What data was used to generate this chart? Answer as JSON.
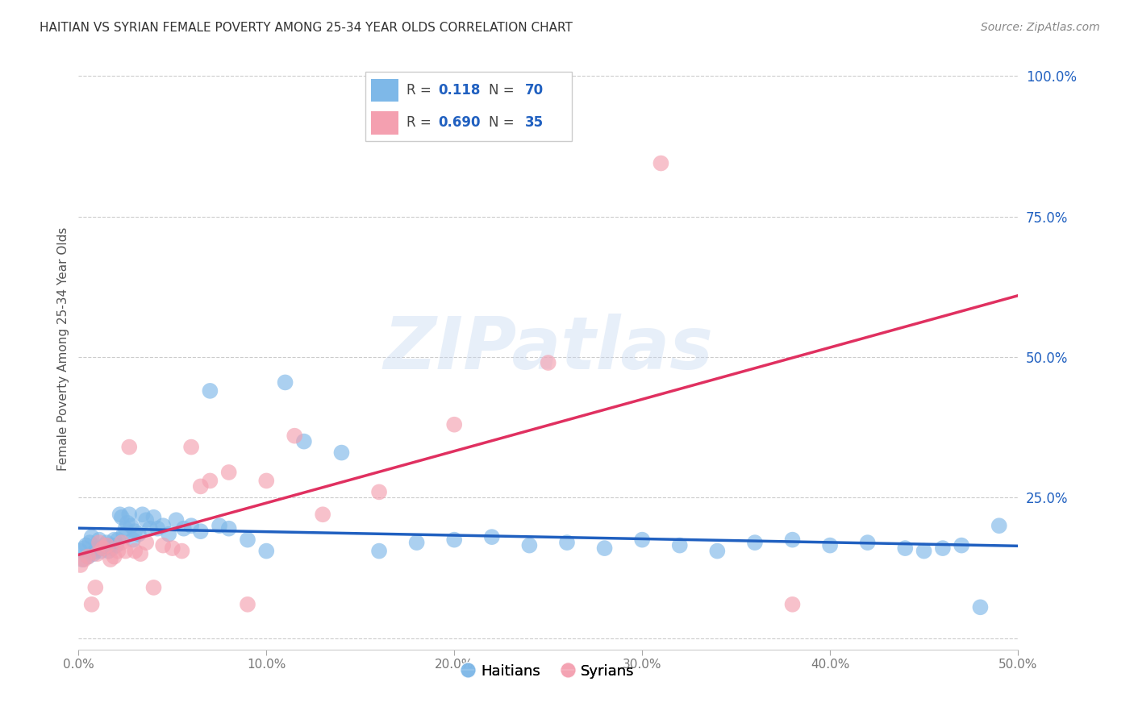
{
  "title": "HAITIAN VS SYRIAN FEMALE POVERTY AMONG 25-34 YEAR OLDS CORRELATION CHART",
  "source": "Source: ZipAtlas.com",
  "ylabel": "Female Poverty Among 25-34 Year Olds",
  "xlim": [
    0.0,
    0.5
  ],
  "ylim": [
    -0.02,
    1.05
  ],
  "xticks": [
    0.0,
    0.1,
    0.2,
    0.3,
    0.4,
    0.5
  ],
  "yticks": [
    0.0,
    0.25,
    0.5,
    0.75,
    1.0
  ],
  "xticklabels": [
    "0.0%",
    "10.0%",
    "20.0%",
    "30.0%",
    "40.0%",
    "50.0%"
  ],
  "yticklabels": [
    "",
    "25.0%",
    "50.0%",
    "75.0%",
    "100.0%"
  ],
  "watermark": "ZIPatlas",
  "haitian_color": "#7EB8E8",
  "syrian_color": "#F4A0B0",
  "haitian_line_color": "#2060C0",
  "syrian_line_color": "#E03060",
  "haitian_R": 0.118,
  "haitian_N": 70,
  "syrian_R": 0.69,
  "syrian_N": 35,
  "haitian_x": [
    0.001,
    0.002,
    0.003,
    0.004,
    0.005,
    0.006,
    0.007,
    0.008,
    0.009,
    0.01,
    0.011,
    0.012,
    0.013,
    0.014,
    0.015,
    0.016,
    0.017,
    0.018,
    0.019,
    0.02,
    0.021,
    0.022,
    0.023,
    0.024,
    0.025,
    0.026,
    0.027,
    0.028,
    0.029,
    0.03,
    0.032,
    0.034,
    0.036,
    0.038,
    0.04,
    0.042,
    0.045,
    0.048,
    0.052,
    0.056,
    0.06,
    0.065,
    0.07,
    0.075,
    0.08,
    0.09,
    0.1,
    0.11,
    0.12,
    0.14,
    0.16,
    0.18,
    0.2,
    0.22,
    0.24,
    0.26,
    0.28,
    0.3,
    0.32,
    0.34,
    0.36,
    0.38,
    0.4,
    0.42,
    0.44,
    0.45,
    0.46,
    0.47,
    0.48,
    0.49
  ],
  "haitian_y": [
    0.155,
    0.14,
    0.16,
    0.165,
    0.145,
    0.17,
    0.18,
    0.15,
    0.155,
    0.16,
    0.175,
    0.155,
    0.16,
    0.165,
    0.17,
    0.155,
    0.165,
    0.16,
    0.175,
    0.165,
    0.175,
    0.22,
    0.215,
    0.185,
    0.195,
    0.205,
    0.22,
    0.2,
    0.175,
    0.19,
    0.185,
    0.22,
    0.21,
    0.195,
    0.215,
    0.195,
    0.2,
    0.185,
    0.21,
    0.195,
    0.2,
    0.19,
    0.44,
    0.2,
    0.195,
    0.175,
    0.155,
    0.455,
    0.35,
    0.33,
    0.155,
    0.17,
    0.175,
    0.18,
    0.165,
    0.17,
    0.16,
    0.175,
    0.165,
    0.155,
    0.17,
    0.175,
    0.165,
    0.17,
    0.16,
    0.155,
    0.16,
    0.165,
    0.055,
    0.2
  ],
  "syrian_x": [
    0.001,
    0.003,
    0.005,
    0.007,
    0.009,
    0.01,
    0.011,
    0.013,
    0.015,
    0.017,
    0.019,
    0.021,
    0.023,
    0.025,
    0.027,
    0.03,
    0.033,
    0.036,
    0.04,
    0.045,
    0.05,
    0.055,
    0.06,
    0.065,
    0.07,
    0.08,
    0.09,
    0.1,
    0.115,
    0.13,
    0.16,
    0.2,
    0.25,
    0.31,
    0.38
  ],
  "syrian_y": [
    0.13,
    0.14,
    0.145,
    0.06,
    0.09,
    0.15,
    0.17,
    0.16,
    0.165,
    0.14,
    0.145,
    0.155,
    0.17,
    0.155,
    0.34,
    0.155,
    0.15,
    0.17,
    0.09,
    0.165,
    0.16,
    0.155,
    0.34,
    0.27,
    0.28,
    0.295,
    0.06,
    0.28,
    0.36,
    0.22,
    0.26,
    0.38,
    0.49,
    0.845,
    0.06
  ]
}
